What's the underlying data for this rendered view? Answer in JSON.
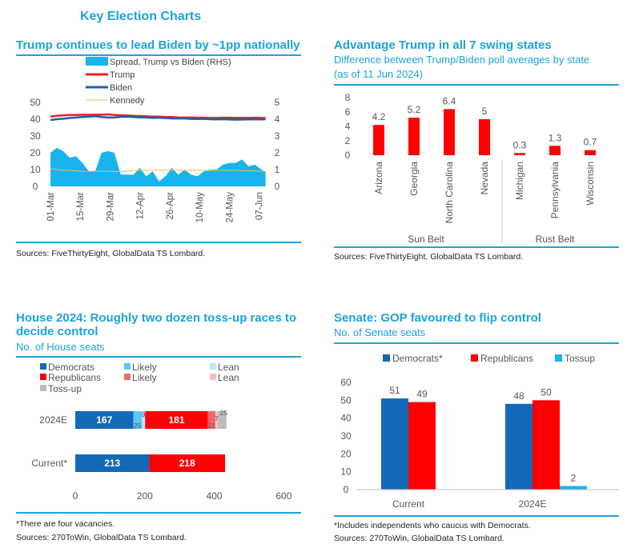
{
  "page_title": "Key Election Charts",
  "colors": {
    "accent": "#1ca3dc",
    "trump": "#e8202a",
    "biden": "#1f5fae",
    "kennedy": "#f0c040",
    "spread": "#19b4ee",
    "dem": "#1468b8",
    "dem_likely": "#5ec7f0",
    "dem_lean": "#bfe7f8",
    "rep": "#ff0000",
    "rep_likely": "#f06868",
    "rep_lean": "#f8c0c0",
    "tossup": "#bdbdbd"
  },
  "chart_data": [
    {
      "type": "line",
      "title": "Trump continues to lead Biden by ~1pp nationally",
      "ylim": [
        0,
        50
      ],
      "y2lim": [
        0,
        5
      ],
      "x_ticks": [
        "01-Mar",
        "15-Mar",
        "29-Mar",
        "12-Apr",
        "26-Apr",
        "10-May",
        "24-May",
        "07-Jun"
      ],
      "x": [
        "2024-03-01",
        "2024-03-04",
        "2024-03-07",
        "2024-03-10",
        "2024-03-13",
        "2024-03-16",
        "2024-03-19",
        "2024-03-22",
        "2024-03-25",
        "2024-03-28",
        "2024-03-31",
        "2024-04-03",
        "2024-04-06",
        "2024-04-09",
        "2024-04-12",
        "2024-04-15",
        "2024-04-18",
        "2024-04-21",
        "2024-04-24",
        "2024-04-27",
        "2024-04-30",
        "2024-05-03",
        "2024-05-06",
        "2024-05-09",
        "2024-05-12",
        "2024-05-15",
        "2024-05-18",
        "2024-05-21",
        "2024-05-24",
        "2024-05-27",
        "2024-05-30",
        "2024-06-02",
        "2024-06-05",
        "2024-06-08",
        "2024-06-10"
      ],
      "series": [
        {
          "name": "Spread, Trump vs Biden (RHS)",
          "type": "area",
          "axis": "right",
          "values": [
            2.0,
            2.3,
            2.1,
            1.7,
            1.8,
            1.4,
            0.9,
            0.9,
            2.0,
            2.1,
            2.0,
            0.7,
            0.7,
            0.7,
            1.1,
            0.6,
            0.9,
            0.3,
            0.6,
            1.1,
            0.7,
            1.0,
            0.7,
            0.6,
            0.9,
            1.0,
            1.0,
            1.3,
            1.4,
            1.4,
            1.6,
            1.2,
            1.3,
            1.0,
            0.9
          ]
        },
        {
          "name": "Trump",
          "type": "line",
          "axis": "left",
          "values": [
            41.5,
            42,
            42.3,
            42.5,
            42.5,
            42.7,
            42.6,
            42.7,
            42.7,
            42.9,
            42.5,
            42.3,
            42.2,
            42,
            41.9,
            41.7,
            41.5,
            41.5,
            41.3,
            41.3,
            41.1,
            41,
            41,
            40.9,
            40.9,
            40.8,
            40.8,
            40.9,
            40.9,
            40.8,
            40.8,
            40.8,
            40.9,
            40.7,
            40.7
          ]
        },
        {
          "name": "Biden",
          "type": "line",
          "axis": "left",
          "values": [
            39.5,
            40,
            40.3,
            40.7,
            41,
            41.3,
            41.5,
            41.8,
            41.3,
            41,
            41,
            41.4,
            41.5,
            41.3,
            41.1,
            41,
            40.8,
            40.9,
            40.7,
            40.5,
            40.4,
            40.4,
            40.2,
            40.1,
            40.2,
            40,
            39.9,
            40,
            39.8,
            39.7,
            39.8,
            39.9,
            39.9,
            39.9,
            40
          ]
        },
        {
          "name": "Kennedy",
          "type": "line",
          "axis": "left",
          "values": [
            10.5,
            10,
            9.5,
            9.5,
            9.2,
            9,
            9,
            9,
            9,
            9,
            8.8,
            8.8,
            9.2,
            9.4,
            9.5,
            9.6,
            9.6,
            9.7,
            9.6,
            9.7,
            9.5,
            9.5,
            9.6,
            9.6,
            9.5,
            9.4,
            9.5,
            9.5,
            9.6,
            9.5,
            9.4,
            9.3,
            9.2,
            9,
            9
          ]
        }
      ],
      "yticks": [
        0,
        10,
        20,
        30,
        40,
        50
      ],
      "y2ticks": [
        0,
        1,
        2,
        3,
        4,
        5
      ],
      "source": "Sources: FiveThirtyEight, GlobalData TS Lombard."
    },
    {
      "type": "bar",
      "title": "Advantage Trump in all 7 swing states",
      "subtitle": "Difference between Trump/Biden poll averages by state",
      "subtitle2": "(as of 11 Jun 2024)",
      "categories": [
        "Arizona",
        "Georgia",
        "North Carolina",
        "Nevada",
        "Michigan",
        "Pennsylvania",
        "Wisconsin"
      ],
      "values": [
        4.2,
        5.2,
        6.4,
        5,
        0.3,
        1.3,
        0.7
      ],
      "labels": [
        "4.2",
        "5.2",
        "6.4",
        "5",
        "0.3",
        "1.3",
        "0.7"
      ],
      "groups": [
        "Sun Belt",
        "Rust Belt"
      ],
      "ylim": [
        0,
        8
      ],
      "yticks": [
        0,
        2,
        4,
        6,
        8
      ],
      "source": "Sources: FiveThirtyEight, GlobalData TS Lombard."
    },
    {
      "type": "bar",
      "orientation": "horizontal",
      "stacked": true,
      "title": "House 2024: Roughly two dozen toss-up races to",
      "title2": "decide control",
      "subtitle": "No. of House seats",
      "legend": [
        "Democrats",
        "Likely",
        "Lean",
        "Republicans",
        "Likely",
        "Lean",
        "Toss-up"
      ],
      "categories": [
        "2024E",
        "Current*"
      ],
      "series": [
        {
          "name": "Democrats",
          "values": [
            167,
            213
          ]
        },
        {
          "name": "Likely",
          "values": [
            25,
            0
          ]
        },
        {
          "name": "Lean",
          "values": [
            9,
            0
          ]
        },
        {
          "name": "Republicans",
          "values": [
            181,
            218
          ]
        },
        {
          "name": "Likely",
          "values": [
            21,
            0
          ]
        },
        {
          "name": "Lean",
          "values": [
            7,
            0
          ]
        },
        {
          "name": "Toss-up",
          "values": [
            25,
            0
          ]
        }
      ],
      "xlim": [
        0,
        600
      ],
      "xticks": [
        "0",
        "200",
        "400",
        "600"
      ],
      "footnote": "*There are four vacancies.",
      "source": "Sources: 270ToWin, GlobalData TS Lombard."
    },
    {
      "type": "bar",
      "title": "Senate: GOP favoured to flip control",
      "subtitle": "No. of Senate seats",
      "categories": [
        "Current",
        "2024E"
      ],
      "series": [
        {
          "name": "Democrats*",
          "values": [
            51,
            48
          ]
        },
        {
          "name": "Republicans",
          "values": [
            49,
            50
          ]
        },
        {
          "name": "Tossup",
          "values": [
            0,
            2
          ]
        }
      ],
      "ylim": [
        0,
        60
      ],
      "yticks": [
        "0",
        "10",
        "20",
        "30",
        "40",
        "50",
        "60"
      ],
      "footnote": "*Includes independents who caucus with Democrats.",
      "source": "Sources: 270ToWin, GlobalData TS Lombard."
    }
  ]
}
